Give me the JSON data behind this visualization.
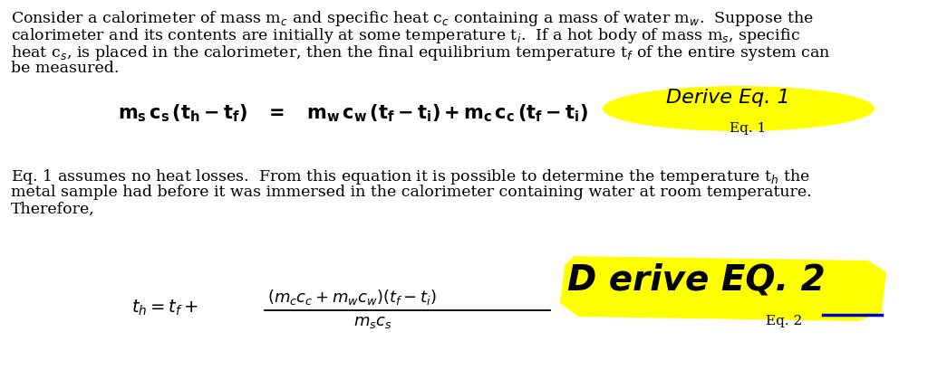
{
  "background_color": "#ffffff",
  "text_color": "#000000",
  "yellow_color": "#ffff00",
  "blue_color": "#0000cc",
  "font_size_text": 12.5,
  "para1_lines": [
    "Consider a calorimeter of mass m$_c$ and specific heat c$_c$ containing a mass of water m$_w$.  Suppose the",
    "calorimeter and its contents are initially at some temperature t$_i$.  If a hot body of mass m$_s$, specific",
    "heat c$_s$, is placed in the calorimeter, then the final equilibrium temperature t$_f$ of the entire system can",
    "be measured."
  ],
  "para2_lines": [
    "Eq. 1 assumes no heat losses.  From this equation it is possible to determine the temperature t$_h$ the",
    "metal sample had before it was immersed in the calorimeter containing water at room temperature.",
    "Therefore,"
  ],
  "eq1_label": "Eq. 1",
  "eq2_label": "Eq. 2",
  "handwriting1": "Derive Eq. 1",
  "handwriting2": "D erive EQ. 2"
}
